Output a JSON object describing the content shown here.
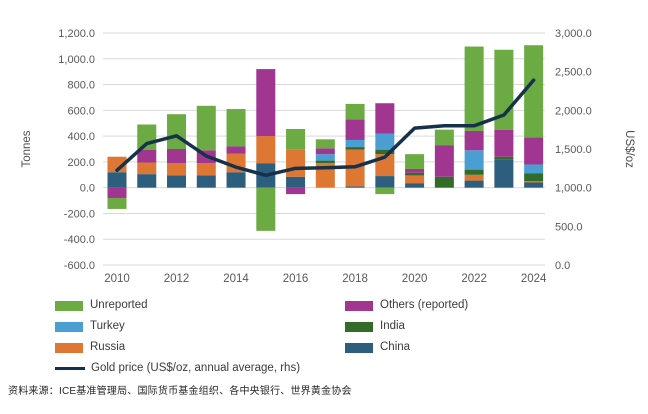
{
  "chart_data": {
    "type": "bar",
    "subtype": "stacked-bar-with-line",
    "title": "",
    "x": [
      2010,
      2011,
      2012,
      2013,
      2014,
      2015,
      2016,
      2017,
      2018,
      2019,
      2020,
      2021,
      2022,
      2023,
      2024
    ],
    "x_ticks": [
      2010,
      2012,
      2014,
      2016,
      2018,
      2020,
      2022,
      2024
    ],
    "left_axis": {
      "label": "Tonnes",
      "min": -600,
      "max": 1200,
      "step": 200
    },
    "right_axis": {
      "label": "US$/oz",
      "min": 0,
      "max": 3000,
      "step": 500
    },
    "grid": true,
    "series": [
      {
        "key": "china",
        "name": "China",
        "color": "#2d5e7d",
        "values": [
          120,
          105,
          95,
          95,
          120,
          190,
          85,
          0,
          10,
          90,
          35,
          0,
          55,
          220,
          40
        ]
      },
      {
        "key": "russia",
        "name": "Russia",
        "color": "#dd7733",
        "values": [
          120,
          90,
          95,
          95,
          145,
          210,
          210,
          190,
          285,
          170,
          60,
          0,
          45,
          0,
          10
        ]
      },
      {
        "key": "india",
        "name": "India",
        "color": "#336b28",
        "values": [
          0,
          0,
          0,
          0,
          0,
          0,
          0,
          20,
          20,
          35,
          20,
          85,
          40,
          20,
          60
        ]
      },
      {
        "key": "turkey",
        "name": "Turkey",
        "color": "#4a9ed2",
        "values": [
          0,
          0,
          0,
          0,
          0,
          0,
          0,
          50,
          55,
          125,
          0,
          0,
          150,
          0,
          70
        ]
      },
      {
        "key": "others",
        "name": "Others (reported)",
        "color": "#a0368f",
        "values": [
          -80,
          100,
          110,
          100,
          55,
          520,
          -50,
          45,
          160,
          235,
          30,
          245,
          150,
          210,
          210
        ]
      },
      {
        "key": "unreported",
        "name": "Unreported",
        "color": "#6caa43",
        "values": [
          -85,
          195,
          270,
          345,
          290,
          -335,
          160,
          70,
          120,
          -50,
          115,
          120,
          655,
          620,
          715
        ]
      }
    ],
    "line_series": {
      "key": "gold_price",
      "name": "Gold price (US$/oz, annual average, rhs)",
      "color": "#16324a",
      "axis": "right",
      "values": [
        1225,
        1570,
        1670,
        1410,
        1265,
        1160,
        1250,
        1257,
        1270,
        1395,
        1770,
        1800,
        1800,
        1940,
        2390
      ]
    },
    "legend": {
      "position": "bottom",
      "columns": [
        [
          {
            "key": "unreported",
            "label": "Unreported",
            "swatch": "box",
            "color": "#6caa43"
          },
          {
            "key": "turkey",
            "label": "Turkey",
            "swatch": "box",
            "color": "#4a9ed2"
          },
          {
            "key": "russia",
            "label": "Russia",
            "swatch": "box",
            "color": "#dd7733"
          },
          {
            "key": "gold_price",
            "label": "Gold price (US$/oz, annual average, rhs)",
            "swatch": "line",
            "color": "#16324a"
          }
        ],
        [
          {
            "key": "others",
            "label": "Others (reported)",
            "swatch": "box",
            "color": "#a0368f"
          },
          {
            "key": "india",
            "label": "India",
            "swatch": "box",
            "color": "#336b28"
          },
          {
            "key": "china",
            "label": "China",
            "swatch": "box",
            "color": "#2d5e7d"
          }
        ]
      ]
    },
    "colors": {
      "grid": "#d9d9d9",
      "tick_text": "#595959"
    }
  },
  "source_note": "资料来源：ICE基准管理局、国际货币基金组织、各中央银行、世界黄金协会"
}
